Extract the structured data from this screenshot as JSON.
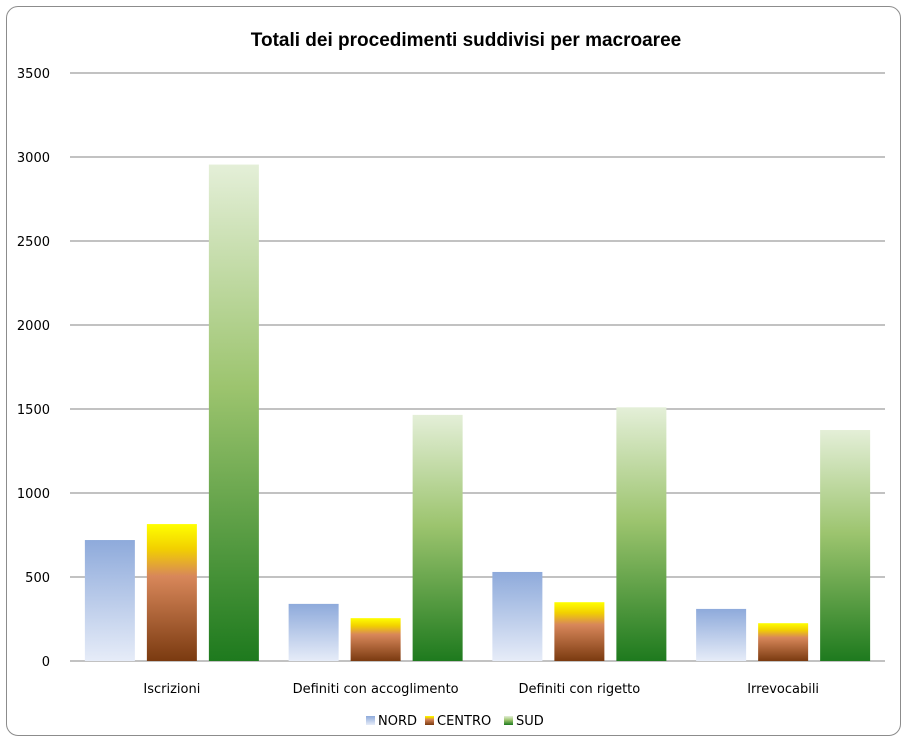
{
  "chart_data": {
    "type": "bar",
    "title": "Totali dei procedimenti suddivisi per macroaree",
    "xlabel": "",
    "ylabel": "",
    "ylim": [
      0,
      3500
    ],
    "yticks": [
      0,
      500,
      1000,
      1500,
      2000,
      2500,
      3000,
      3500
    ],
    "grid": true,
    "legend": "bottom",
    "categories": [
      "Iscrizioni",
      "Definiti con accoglimento",
      "Definiti con rigetto",
      "Irrevocabili"
    ],
    "series": [
      {
        "name": "NORD",
        "values": [
          720,
          340,
          530,
          310
        ]
      },
      {
        "name": "CENTRO",
        "values": [
          815,
          255,
          350,
          225
        ]
      },
      {
        "name": "SUD",
        "values": [
          2955,
          1465,
          1510,
          1375
        ]
      }
    ]
  },
  "colors": {
    "NORD": {
      "top": "#8eaadb",
      "bottom": "#e6ecf8"
    },
    "CENTRO": {
      "top": "#ffff00",
      "mid": "#d8875a",
      "bottom": "#7a3a10"
    },
    "SUD": {
      "top": "#e4efd8",
      "mid": "#9cc46e",
      "bottom": "#1e7a1e"
    },
    "grid": "#868686"
  }
}
